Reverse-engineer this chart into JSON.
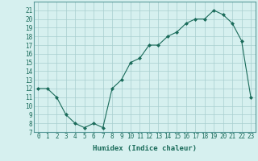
{
  "xlabel": "Humidex (Indice chaleur)",
  "ylabel": "",
  "x": [
    0,
    1,
    2,
    3,
    4,
    5,
    6,
    7,
    8,
    9,
    10,
    11,
    12,
    13,
    14,
    15,
    16,
    17,
    18,
    19,
    20,
    21,
    22,
    23
  ],
  "y": [
    12,
    12,
    11,
    9,
    8,
    7.5,
    8,
    7.5,
    12,
    13,
    15,
    15.5,
    17,
    17,
    18,
    18.5,
    19.5,
    20,
    20,
    21,
    20.5,
    19.5,
    17.5,
    11
  ],
  "line_color": "#1a6b5a",
  "marker": "D",
  "marker_size": 2.0,
  "bg_color": "#d6f0ef",
  "grid_color": "#a8cece",
  "tick_color": "#1a6b5a",
  "xlim": [
    -0.5,
    23.5
  ],
  "ylim": [
    7,
    22
  ],
  "yticks": [
    7,
    8,
    9,
    10,
    11,
    12,
    13,
    14,
    15,
    16,
    17,
    18,
    19,
    20,
    21
  ],
  "xticks": [
    0,
    1,
    2,
    3,
    4,
    5,
    6,
    7,
    8,
    9,
    10,
    11,
    12,
    13,
    14,
    15,
    16,
    17,
    18,
    19,
    20,
    21,
    22,
    23
  ],
  "fontsize_ticks": 5.5,
  "fontsize_label": 6.5
}
